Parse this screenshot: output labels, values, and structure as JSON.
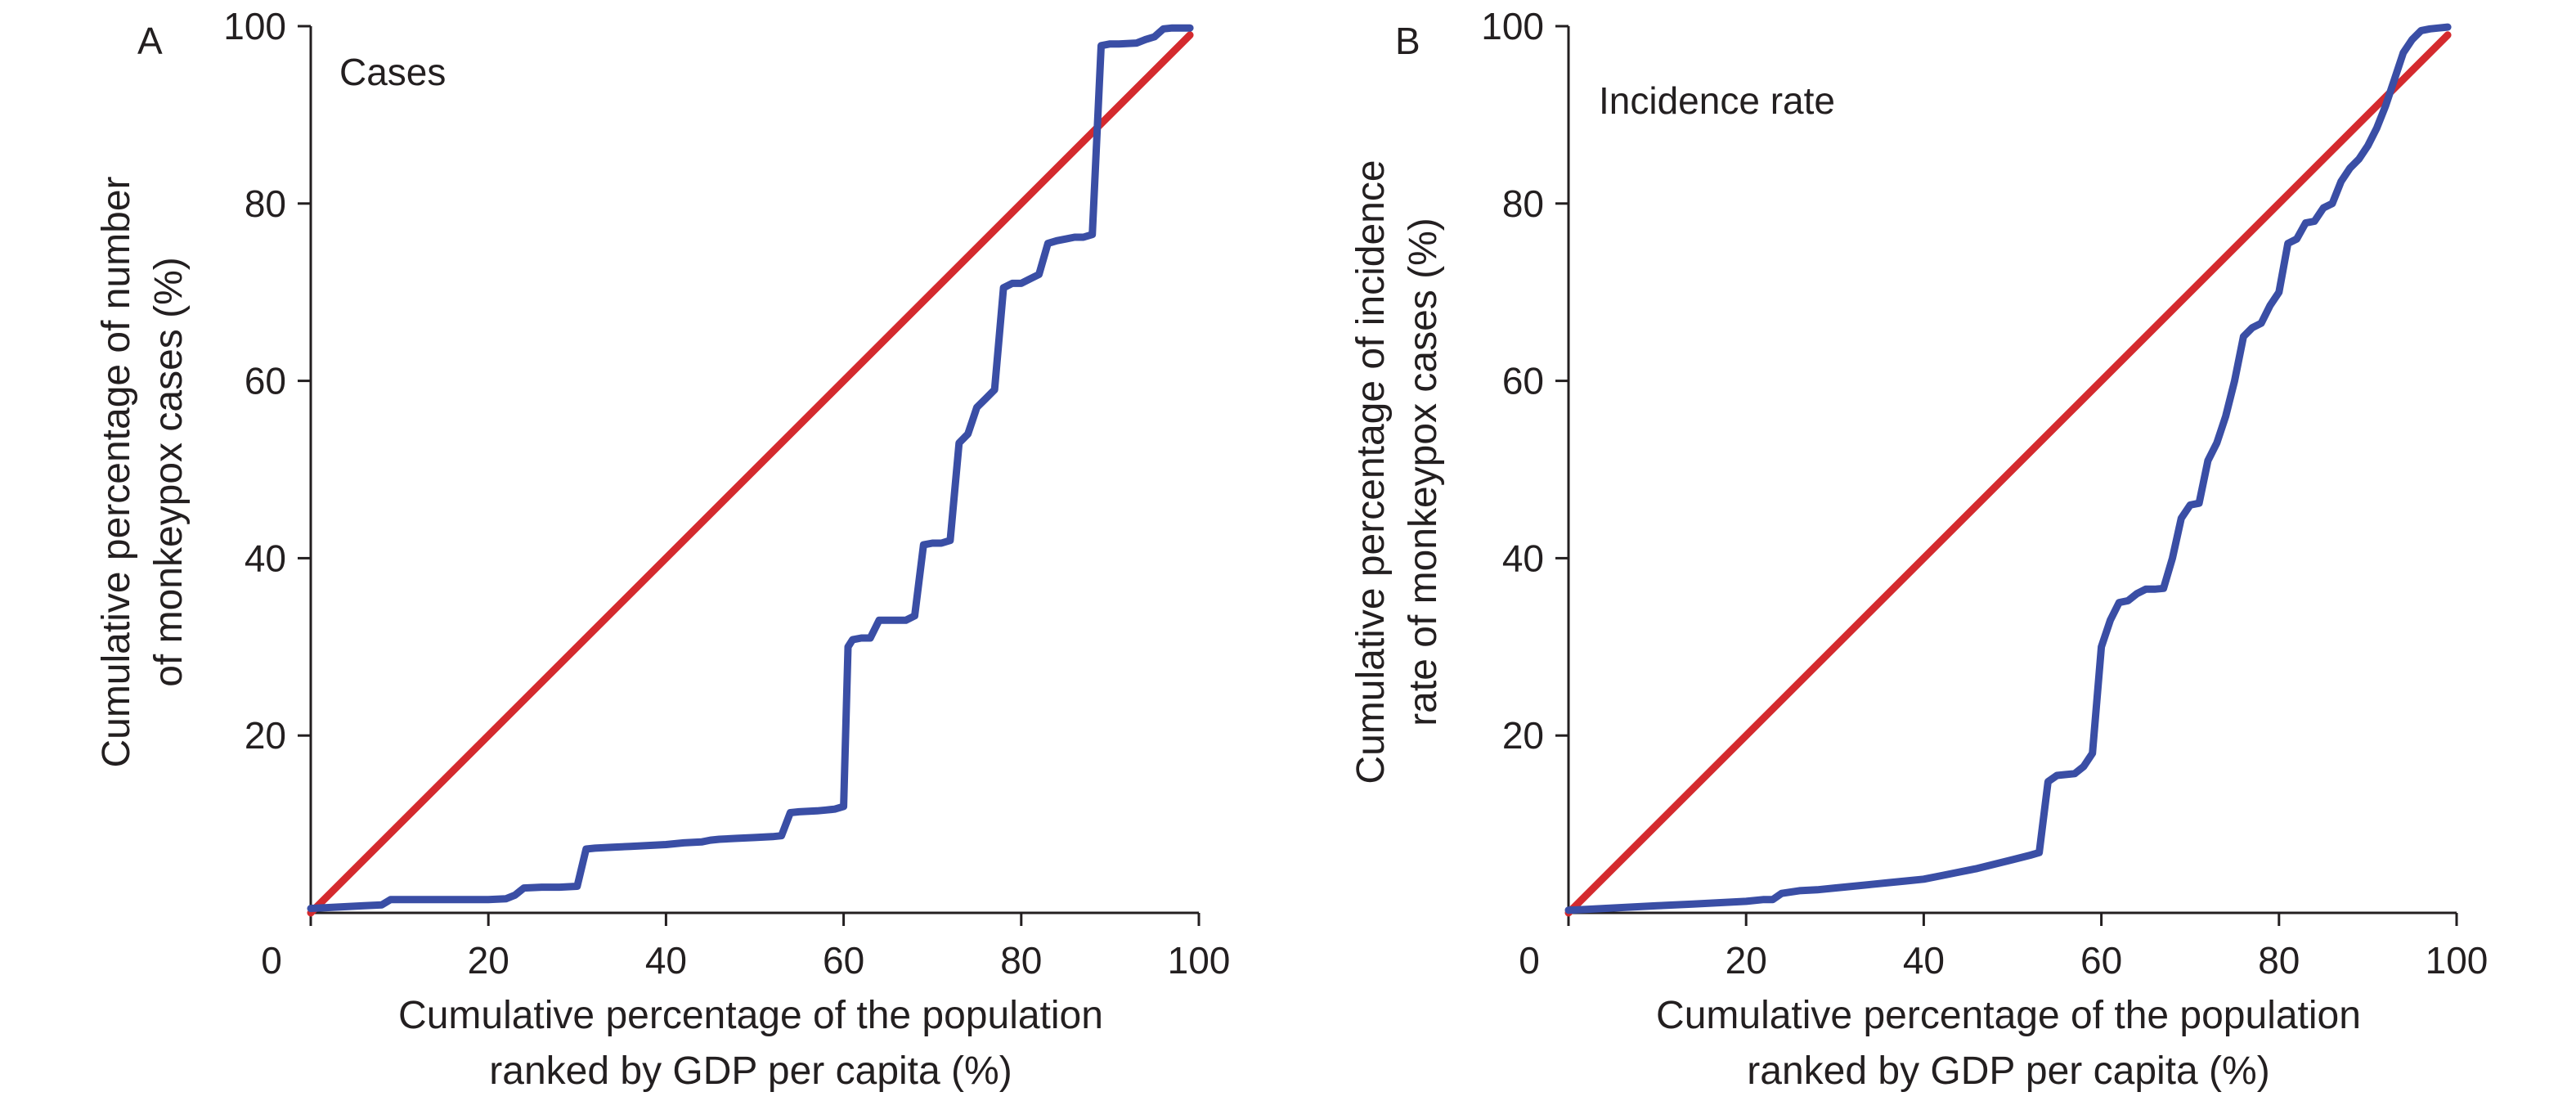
{
  "colors": {
    "curve": "#3a4ea5",
    "equality": "#d42a2e",
    "axis": "#231f20",
    "background": "#ffffff"
  },
  "chart_data": [
    {
      "type": "line",
      "panel": "A",
      "title": "Cases",
      "xlabel": [
        "Cumulative percentage of the population",
        "ranked by GDP per capita (%)"
      ],
      "ylabel": [
        "Cumulative percentage of number",
        "of monkeypox cases (%)"
      ],
      "xlim": [
        0,
        100
      ],
      "ylim": [
        0,
        100
      ],
      "xticks": [
        0,
        20,
        40,
        60,
        80,
        100
      ],
      "yticks": [
        20,
        40,
        60,
        80,
        100
      ],
      "grid": false,
      "series": [
        {
          "role": "concentration-curve",
          "color": "#3a4ea5",
          "x": [
            0,
            2,
            4,
            6,
            8,
            9,
            10,
            12,
            14,
            16,
            18,
            20,
            22,
            23,
            24,
            26,
            28,
            30,
            31,
            32,
            34,
            36,
            38,
            40,
            42,
            44,
            45,
            46,
            48,
            50,
            52,
            53,
            54,
            55,
            57,
            58,
            59,
            60,
            60.5,
            61,
            62,
            63,
            64,
            65,
            67,
            68,
            69,
            70,
            71,
            72,
            73,
            74,
            75,
            76,
            77,
            78,
            79,
            80,
            81,
            82,
            83,
            84,
            85,
            86,
            87,
            88,
            89,
            90,
            91,
            93,
            94,
            95,
            96,
            97,
            98,
            99
          ],
          "y": [
            0.5,
            0.6,
            0.7,
            0.8,
            0.9,
            1.5,
            1.5,
            1.5,
            1.5,
            1.5,
            1.5,
            1.5,
            1.6,
            2.0,
            2.8,
            2.9,
            2.9,
            3.0,
            7.2,
            7.3,
            7.4,
            7.5,
            7.6,
            7.7,
            7.9,
            8.0,
            8.2,
            8.3,
            8.4,
            8.5,
            8.6,
            8.7,
            11.3,
            11.4,
            11.5,
            11.6,
            11.7,
            12.0,
            30.0,
            30.8,
            31.0,
            31.0,
            33.0,
            33.0,
            33.0,
            33.5,
            41.5,
            41.7,
            41.7,
            42.0,
            53.0,
            54.0,
            57.0,
            58.0,
            59.0,
            70.5,
            71.0,
            71.0,
            71.5,
            72.0,
            75.5,
            75.8,
            76.0,
            76.2,
            76.2,
            76.5,
            97.8,
            98.0,
            98.0,
            98.1,
            98.5,
            98.8,
            99.7,
            99.8,
            99.8,
            99.8
          ]
        },
        {
          "role": "line-of-equality",
          "color": "#d42a2e",
          "x": [
            0,
            99
          ],
          "y": [
            0,
            99
          ]
        }
      ]
    },
    {
      "type": "line",
      "panel": "B",
      "title": "Incidence rate",
      "xlabel": [
        "Cumulative percentage of the population",
        "ranked by GDP per capita (%)"
      ],
      "ylabel": [
        "Cumulative percentage of incidence",
        "rate of monkeypox cases (%)"
      ],
      "xlim": [
        0,
        100
      ],
      "ylim": [
        0,
        100
      ],
      "xticks": [
        0,
        20,
        40,
        60,
        80,
        100
      ],
      "yticks": [
        20,
        40,
        60,
        80,
        100
      ],
      "grid": false,
      "series": [
        {
          "role": "concentration-curve",
          "color": "#3a4ea5",
          "x": [
            0,
            2,
            4,
            6,
            8,
            10,
            12,
            14,
            16,
            18,
            20,
            22,
            23,
            24,
            26,
            28,
            30,
            32,
            34,
            36,
            38,
            40,
            42,
            44,
            46,
            48,
            50,
            52,
            53,
            54,
            55,
            56,
            57,
            58,
            59,
            60,
            61,
            62,
            63,
            64,
            65,
            66,
            67,
            68,
            69,
            70,
            71,
            72,
            73,
            74,
            75,
            76,
            77,
            78,
            79,
            80,
            81,
            82,
            83,
            84,
            85,
            86,
            87,
            88,
            89,
            90,
            91,
            92,
            93,
            94,
            95,
            96,
            97,
            98,
            99
          ],
          "y": [
            0.3,
            0.4,
            0.5,
            0.6,
            0.7,
            0.8,
            0.9,
            1.0,
            1.1,
            1.2,
            1.3,
            1.5,
            1.5,
            2.2,
            2.5,
            2.6,
            2.8,
            3.0,
            3.2,
            3.4,
            3.6,
            3.8,
            4.2,
            4.6,
            5.0,
            5.5,
            6.0,
            6.5,
            6.8,
            14.8,
            15.5,
            15.6,
            15.7,
            16.5,
            18.0,
            30.0,
            33.0,
            35.0,
            35.2,
            36.0,
            36.5,
            36.5,
            36.6,
            40.0,
            44.5,
            46.0,
            46.2,
            51.0,
            53.0,
            56.0,
            60.0,
            65.0,
            66.0,
            66.5,
            68.5,
            70.0,
            75.5,
            76.0,
            77.8,
            78.0,
            79.5,
            80.0,
            82.5,
            84.0,
            85.0,
            86.5,
            88.5,
            91.0,
            94.0,
            97.0,
            98.5,
            99.5,
            99.7,
            99.8,
            99.9
          ]
        },
        {
          "role": "line-of-equality",
          "color": "#d42a2e",
          "x": [
            0,
            99
          ],
          "y": [
            0,
            99
          ]
        }
      ]
    }
  ]
}
